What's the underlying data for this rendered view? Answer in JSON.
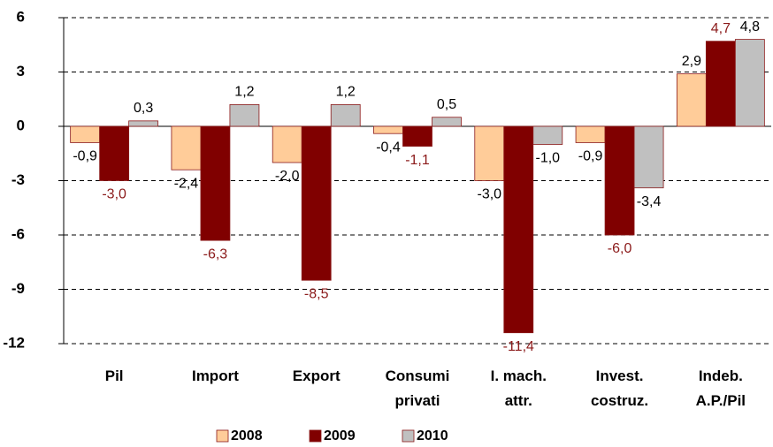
{
  "chart_data": {
    "type": "bar",
    "categories": [
      "Pil",
      "Import",
      "Export",
      "Consumi\nprivati",
      "I. mach.\nattr.",
      "Invest.\ncostruz.",
      "Indeb.\nA.P./Pil"
    ],
    "series": [
      {
        "name": "2008",
        "color": "#ffcc99",
        "label_color": "#000000",
        "values": [
          -0.9,
          -2.4,
          -2.0,
          -0.4,
          -3.0,
          -0.9,
          2.9
        ],
        "value_labels": [
          "-0,9",
          "-2,4",
          "-2,0",
          "-0,4",
          "-3,0",
          "-0,9",
          "2,9"
        ]
      },
      {
        "name": "2009",
        "color": "#800000",
        "label_color": "#8b1a1a",
        "values": [
          -3.0,
          -6.3,
          -8.5,
          -1.1,
          -11.4,
          -6.0,
          4.7
        ],
        "value_labels": [
          "-3,0",
          "-6,3",
          "-8,5",
          "-1,1",
          "-11,4",
          "-6,0",
          "4,7"
        ]
      },
      {
        "name": "2010",
        "color": "#c0c0c0",
        "label_color": "#000000",
        "values": [
          0.3,
          1.2,
          1.2,
          0.5,
          -1.0,
          -3.4,
          4.8
        ],
        "value_labels": [
          "0,3",
          "1,2",
          "1,2",
          "0,5",
          "-1,0",
          "-3,4",
          "4,8"
        ]
      }
    ],
    "ylim": [
      -12,
      6
    ],
    "yticks": [
      -12,
      -9,
      -6,
      -3,
      0,
      3,
      6
    ],
    "grid": true,
    "legend": "bottom"
  }
}
